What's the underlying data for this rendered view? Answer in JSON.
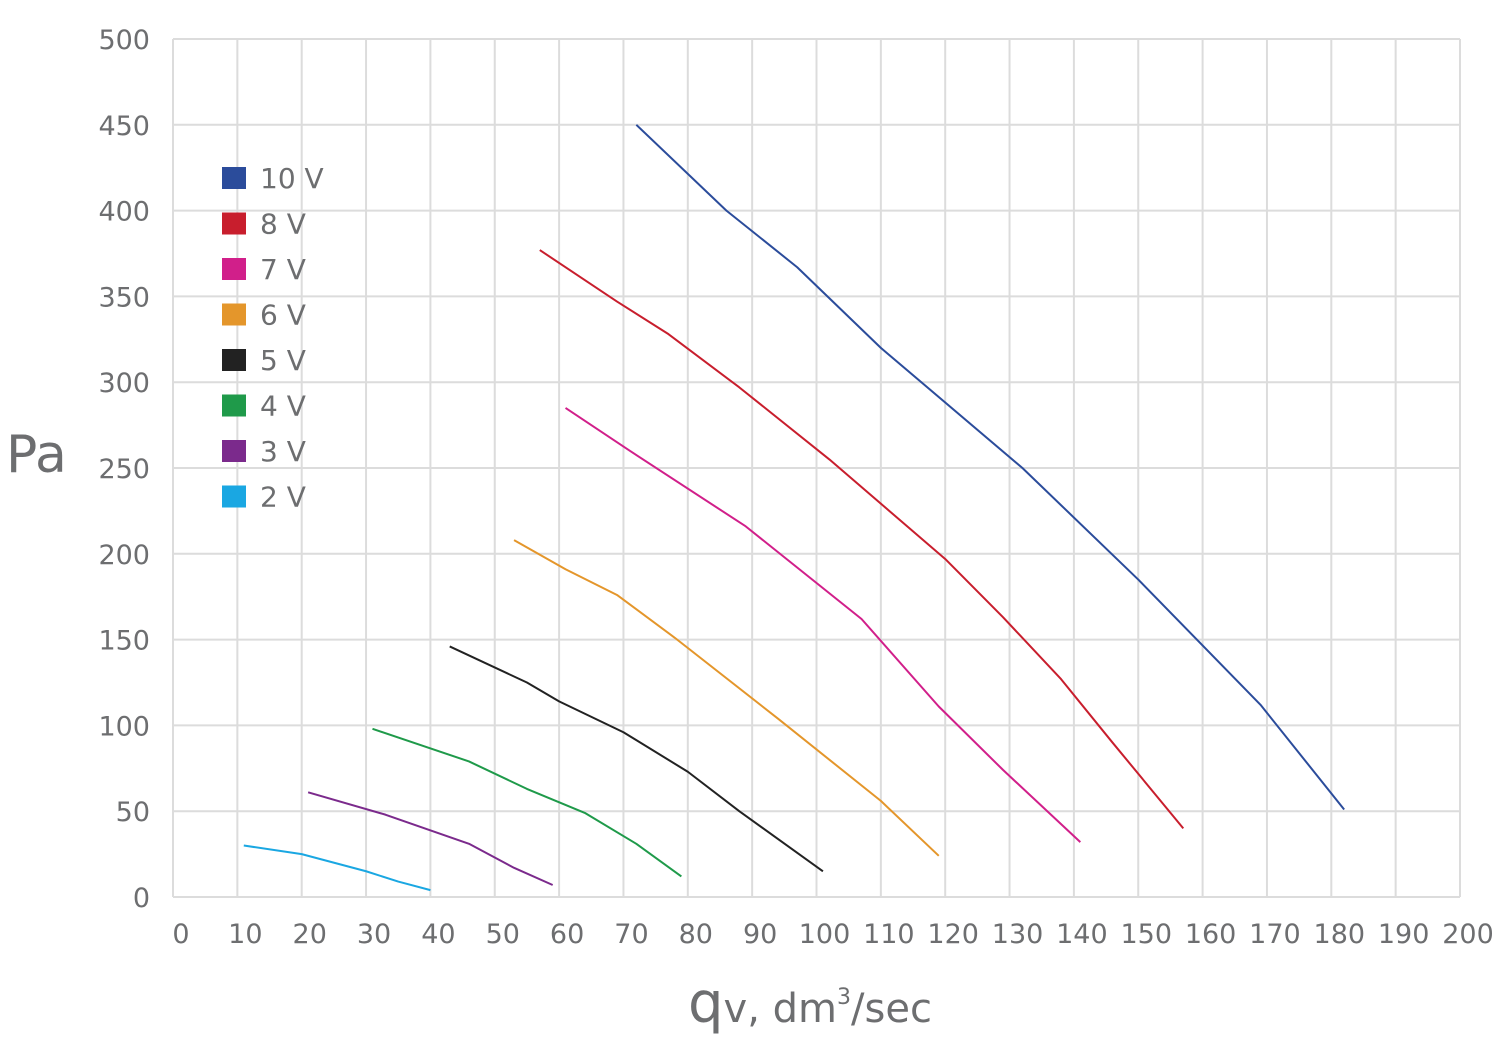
{
  "chart_data": {
    "type": "line",
    "title": "",
    "ylabel": "Pa",
    "xlabel": {
      "main": "q",
      "sub": "v, dm",
      "sup": "3",
      "unit": "/sec"
    },
    "xlim": [
      0,
      200
    ],
    "ylim": [
      0,
      500
    ],
    "xticks": [
      0,
      10,
      20,
      30,
      40,
      50,
      60,
      70,
      80,
      90,
      100,
      110,
      120,
      130,
      140,
      150,
      160,
      170,
      180,
      190,
      200
    ],
    "yticks": [
      0,
      50,
      100,
      150,
      200,
      250,
      300,
      350,
      400,
      450,
      500
    ],
    "grid": true,
    "legend_position": "top-left",
    "series": [
      {
        "name": "10 V",
        "color": "#2b4c9b",
        "x": [
          72,
          86,
          97,
          110,
          132,
          150,
          169,
          182
        ],
        "y": [
          450,
          400,
          367,
          320,
          250,
          185,
          112,
          51
        ]
      },
      {
        "name": "8 V",
        "color": "#c81e2d",
        "x": [
          57,
          69,
          77,
          88,
          102,
          120,
          129,
          138,
          146,
          157
        ],
        "y": [
          377,
          347,
          328,
          297,
          255,
          197,
          163,
          127,
          90,
          40
        ]
      },
      {
        "name": "7 V",
        "color": "#d11f8a",
        "x": [
          61,
          71,
          89,
          107,
          119,
          129,
          141
        ],
        "y": [
          285,
          260,
          216,
          162,
          111,
          74,
          32
        ]
      },
      {
        "name": "6 V",
        "color": "#e4962b",
        "x": [
          53,
          61,
          69,
          78,
          94,
          110,
          119
        ],
        "y": [
          208,
          191,
          176,
          151,
          104,
          56,
          24
        ]
      },
      {
        "name": "5 V",
        "color": "#222222",
        "x": [
          43,
          55,
          60,
          70,
          80,
          88,
          101
        ],
        "y": [
          146,
          125,
          114,
          96,
          73,
          50,
          15
        ]
      },
      {
        "name": "4 V",
        "color": "#1f9a4a",
        "x": [
          31,
          46,
          55,
          64,
          72,
          79
        ],
        "y": [
          98,
          79,
          63,
          49,
          31,
          12
        ]
      },
      {
        "name": "3 V",
        "color": "#7b2a8c",
        "x": [
          21,
          33,
          46,
          53,
          59
        ],
        "y": [
          61,
          48,
          31,
          17,
          7
        ]
      },
      {
        "name": "2 V",
        "color": "#1aa7e2",
        "x": [
          11,
          20,
          30,
          35,
          40
        ],
        "y": [
          30,
          25,
          15,
          9,
          4
        ]
      }
    ]
  }
}
